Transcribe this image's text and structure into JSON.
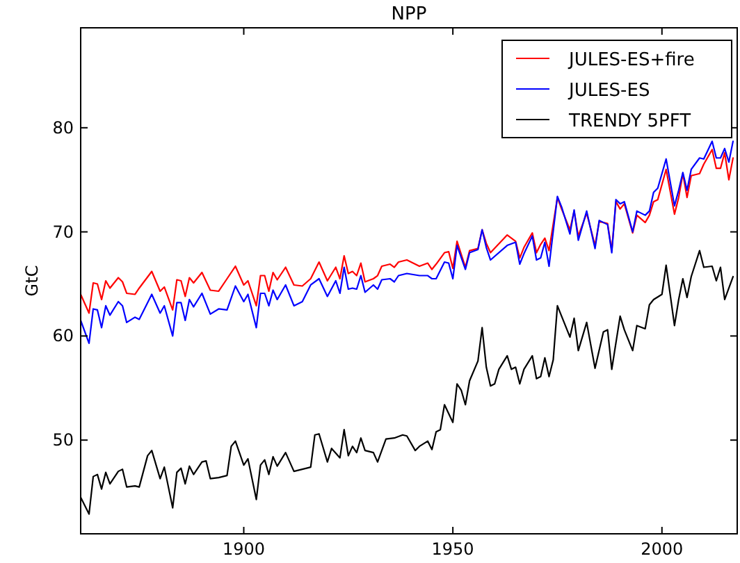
{
  "chart_data": {
    "type": "line",
    "title": "NPP",
    "ylabel": "GtC",
    "xlim": [
      1861,
      2018
    ],
    "xticks": [
      1900,
      1950,
      2000
    ],
    "ylim": [
      41,
      89.6
    ],
    "yticks": [
      50,
      60,
      70,
      80
    ],
    "legend": "top right",
    "grid": false,
    "marker": "none",
    "line_style": "solid",
    "series": [
      {
        "name": "JULES-ES+fire",
        "color": "#ff0000",
        "x": [
          1861,
          1863,
          1864,
          1865,
          1866,
          1867,
          1868,
          1870,
          1871,
          1872,
          1874,
          1875,
          1878,
          1880,
          1881,
          1883,
          1884,
          1885,
          1886,
          1887,
          1888,
          1890,
          1892,
          1894,
          1896,
          1898,
          1900,
          1901,
          1903,
          1904,
          1905,
          1906,
          1907,
          1908,
          1910,
          1912,
          1914,
          1916,
          1918,
          1920,
          1922,
          1923,
          1924,
          1925,
          1926,
          1927,
          1928,
          1929,
          1931,
          1932,
          1933,
          1935,
          1936,
          1937,
          1939,
          1942,
          1944,
          1945,
          1946,
          1948,
          1949,
          1950,
          1951,
          1953,
          1954,
          1956,
          1957,
          1958,
          1959,
          1963,
          1965,
          1966,
          1967,
          1969,
          1970,
          1971,
          1972,
          1973,
          1975,
          1976,
          1978,
          1979,
          1980,
          1982,
          1984,
          1985,
          1987,
          1988,
          1989,
          1990,
          1991,
          1993,
          1994,
          1996,
          1997,
          1998,
          1999,
          2001,
          2003,
          2004,
          2005,
          2006,
          2007,
          2009,
          2010,
          2012,
          2013,
          2014,
          2015,
          2016,
          2017
        ],
        "values": [
          64.0,
          62.2,
          65.1,
          65.0,
          63.5,
          65.3,
          64.6,
          65.6,
          65.2,
          64.1,
          64.0,
          64.6,
          66.2,
          64.3,
          64.7,
          62.5,
          65.4,
          65.3,
          63.8,
          65.6,
          65.1,
          66.1,
          64.4,
          64.3,
          65.5,
          66.7,
          64.9,
          65.3,
          62.9,
          65.8,
          65.8,
          64.3,
          66.1,
          65.4,
          66.6,
          64.9,
          64.8,
          65.5,
          67.1,
          65.3,
          66.6,
          65.5,
          67.7,
          66.0,
          66.2,
          65.8,
          67.0,
          65.2,
          65.5,
          65.8,
          66.7,
          66.9,
          66.6,
          67.1,
          67.3,
          66.7,
          67.0,
          66.4,
          66.9,
          68.0,
          68.1,
          66.5,
          69.1,
          66.6,
          68.2,
          68.4,
          70.2,
          68.9,
          68.0,
          69.7,
          69.1,
          67.5,
          68.5,
          69.9,
          68.0,
          68.8,
          69.4,
          68.2,
          73.3,
          72.2,
          70.2,
          72.0,
          69.6,
          71.8,
          68.7,
          71.0,
          70.8,
          68.2,
          72.9,
          72.2,
          72.7,
          69.9,
          71.6,
          70.9,
          71.6,
          72.9,
          73.1,
          76.0,
          71.7,
          73.3,
          75.6,
          73.3,
          75.4,
          75.6,
          76.5,
          77.9,
          76.1,
          76.1,
          77.6,
          75.0,
          77.1
        ]
      },
      {
        "name": "JULES-ES",
        "color": "#0000ff",
        "x": [
          1861,
          1863,
          1864,
          1865,
          1866,
          1867,
          1868,
          1870,
          1871,
          1872,
          1874,
          1875,
          1878,
          1880,
          1881,
          1883,
          1884,
          1885,
          1886,
          1887,
          1888,
          1890,
          1892,
          1894,
          1896,
          1898,
          1900,
          1901,
          1903,
          1904,
          1905,
          1906,
          1907,
          1908,
          1910,
          1912,
          1914,
          1916,
          1918,
          1920,
          1922,
          1923,
          1924,
          1925,
          1926,
          1927,
          1928,
          1929,
          1931,
          1932,
          1933,
          1935,
          1936,
          1937,
          1939,
          1942,
          1944,
          1945,
          1946,
          1948,
          1949,
          1950,
          1951,
          1953,
          1954,
          1956,
          1957,
          1958,
          1959,
          1963,
          1965,
          1966,
          1967,
          1969,
          1970,
          1971,
          1972,
          1973,
          1975,
          1976,
          1978,
          1979,
          1980,
          1982,
          1984,
          1985,
          1987,
          1988,
          1989,
          1990,
          1991,
          1993,
          1994,
          1996,
          1997,
          1998,
          1999,
          2001,
          2003,
          2004,
          2005,
          2006,
          2007,
          2009,
          2010,
          2012,
          2013,
          2014,
          2015,
          2016,
          2017
        ],
        "values": [
          61.5,
          59.3,
          62.6,
          62.5,
          60.8,
          62.9,
          62.0,
          63.3,
          62.9,
          61.3,
          61.8,
          61.6,
          64.0,
          62.2,
          62.9,
          60.0,
          63.2,
          63.2,
          61.5,
          63.5,
          62.8,
          64.1,
          62.1,
          62.6,
          62.5,
          64.8,
          63.3,
          64.0,
          60.8,
          64.1,
          64.1,
          62.9,
          64.4,
          63.5,
          64.9,
          62.9,
          63.3,
          64.9,
          65.5,
          63.8,
          65.3,
          64.1,
          66.6,
          64.5,
          64.6,
          64.5,
          65.8,
          64.2,
          64.9,
          64.5,
          65.4,
          65.5,
          65.2,
          65.8,
          66.0,
          65.8,
          65.8,
          65.5,
          65.5,
          67.1,
          67.0,
          65.5,
          68.7,
          66.4,
          68.0,
          68.3,
          70.2,
          68.5,
          67.3,
          68.7,
          69.0,
          66.9,
          67.9,
          69.6,
          67.3,
          67.5,
          69.0,
          66.7,
          73.4,
          72.4,
          69.8,
          72.1,
          69.2,
          72.0,
          68.4,
          71.1,
          70.7,
          68.0,
          73.1,
          72.7,
          72.9,
          70.0,
          72.0,
          71.6,
          72.0,
          73.8,
          74.2,
          77.0,
          72.5,
          74.0,
          75.7,
          74.0,
          76.0,
          77.1,
          77.0,
          78.7,
          77.1,
          77.1,
          78.0,
          76.7,
          78.7
        ]
      },
      {
        "name": "TRENDY 5PFT",
        "color": "#000000",
        "x": [
          1861,
          1863,
          1864,
          1865,
          1866,
          1867,
          1868,
          1870,
          1871,
          1872,
          1874,
          1875,
          1877,
          1878,
          1880,
          1881,
          1883,
          1884,
          1885,
          1886,
          1887,
          1888,
          1890,
          1891,
          1892,
          1894,
          1896,
          1897,
          1898,
          1900,
          1901,
          1903,
          1904,
          1905,
          1906,
          1907,
          1908,
          1910,
          1912,
          1914,
          1916,
          1917,
          1918,
          1920,
          1921,
          1923,
          1924,
          1925,
          1926,
          1927,
          1928,
          1929,
          1931,
          1932,
          1934,
          1936,
          1938,
          1939,
          1941,
          1942,
          1944,
          1945,
          1946,
          1947,
          1948,
          1950,
          1951,
          1952,
          1953,
          1954,
          1956,
          1957,
          1958,
          1959,
          1960,
          1961,
          1963,
          1964,
          1965,
          1966,
          1967,
          1969,
          1970,
          1971,
          1972,
          1973,
          1974,
          1975,
          1976,
          1978,
          1979,
          1980,
          1982,
          1984,
          1986,
          1987,
          1988,
          1990,
          1991,
          1993,
          1994,
          1996,
          1997,
          1998,
          2000,
          2001,
          2002,
          2003,
          2004,
          2005,
          2006,
          2007,
          2009,
          2010,
          2012,
          2013,
          2014,
          2015,
          2017
        ],
        "values": [
          44.5,
          42.9,
          46.5,
          46.7,
          45.3,
          46.9,
          45.8,
          47.0,
          47.2,
          45.5,
          45.6,
          45.5,
          48.5,
          49.0,
          46.3,
          47.4,
          43.5,
          46.9,
          47.3,
          45.8,
          47.5,
          46.7,
          47.9,
          48.0,
          46.3,
          46.4,
          46.6,
          49.4,
          49.9,
          47.6,
          48.2,
          44.3,
          47.6,
          48.1,
          46.7,
          48.4,
          47.5,
          48.8,
          47.0,
          47.2,
          47.4,
          50.5,
          50.6,
          47.9,
          49.2,
          48.3,
          51.0,
          48.5,
          49.4,
          48.8,
          50.2,
          49.0,
          48.8,
          47.9,
          50.1,
          50.2,
          50.5,
          50.4,
          49.0,
          49.4,
          49.9,
          49.1,
          50.8,
          51.0,
          53.4,
          51.7,
          55.4,
          54.8,
          53.4,
          55.7,
          57.6,
          60.8,
          57.0,
          55.2,
          55.4,
          56.8,
          58.1,
          56.8,
          57.0,
          55.4,
          56.8,
          58.1,
          55.9,
          56.1,
          57.9,
          56.1,
          57.7,
          62.9,
          61.9,
          59.9,
          61.7,
          58.6,
          61.3,
          56.9,
          60.4,
          60.6,
          56.8,
          61.9,
          60.6,
          58.6,
          61.0,
          60.7,
          63.0,
          63.5,
          64.0,
          66.8,
          63.9,
          61.0,
          63.5,
          65.5,
          63.7,
          65.7,
          68.2,
          66.6,
          66.7,
          65.3,
          66.6,
          63.5,
          65.7
        ]
      }
    ]
  }
}
